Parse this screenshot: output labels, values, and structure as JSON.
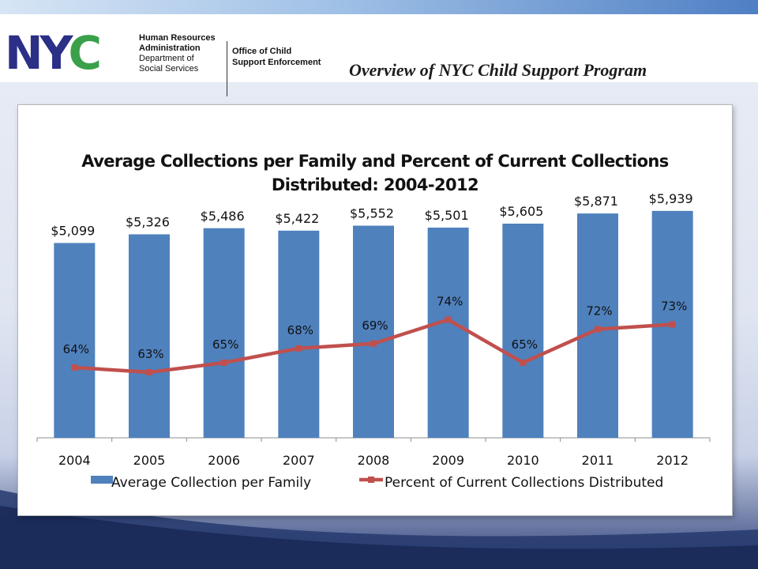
{
  "header": {
    "logo_text": "NYC",
    "agency_line1": "Human Resources",
    "agency_line2": "Administration",
    "agency_line3": "Department of",
    "agency_line4": "Social Services",
    "office_line1": "Office of Child",
    "office_line2": "Support Enforcement",
    "slide_title": "Overview of NYC Child Support Program"
  },
  "colors": {
    "bar": "#4f81bd",
    "line": "#c0504d",
    "logo_blue": "#2b2f86",
    "logo_green": "#3aa04a"
  },
  "chart_data": {
    "type": "bar",
    "title_line1": "Average Collections per Family and Percent of Current Collections",
    "title_line2": "Distributed: 2004-2012",
    "categories": [
      "2004",
      "2005",
      "2006",
      "2007",
      "2008",
      "2009",
      "2010",
      "2011",
      "2012"
    ],
    "series": [
      {
        "name": "Average Collection per Family",
        "type": "bar",
        "values": [
          5099,
          5326,
          5486,
          5422,
          5552,
          5501,
          5605,
          5871,
          5939
        ],
        "labels": [
          "$5,099",
          "$5,326",
          "$5,486",
          "$5,422",
          "$5,552",
          "$5,501",
          "$5,605",
          "$5,871",
          "$5,939"
        ]
      },
      {
        "name": "Percent of Current Collections Distributed",
        "type": "line",
        "values": [
          64,
          63,
          65,
          68,
          69,
          74,
          65,
          72,
          73
        ],
        "labels": [
          "64%",
          "63%",
          "65%",
          "68%",
          "69%",
          "74%",
          "65%",
          "72%",
          "73%"
        ]
      }
    ],
    "legend_placement": "bottom",
    "grid": false
  }
}
